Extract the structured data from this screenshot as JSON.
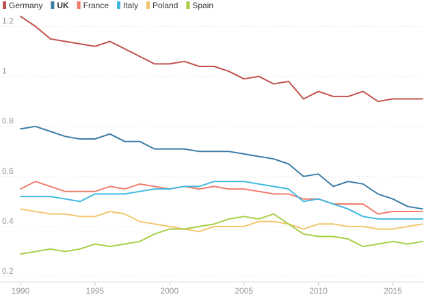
{
  "chart_data": {
    "type": "line",
    "title": "",
    "xlabel": "",
    "ylabel": "",
    "xlim": [
      1990,
      2017
    ],
    "ylim": [
      0.2,
      1.3
    ],
    "y_ticks": [
      0.2,
      0.4,
      0.6,
      0.8,
      1.0,
      1.2
    ],
    "y_tick_labels": [
      "0.2",
      "0.4",
      "0.6",
      "0.8",
      "1",
      "1.2"
    ],
    "x_ticks": [
      1990,
      1995,
      2000,
      2005,
      2010,
      2015
    ],
    "x_tick_labels": [
      "1990",
      "1995",
      "2000",
      "2005",
      "2010",
      "2015"
    ],
    "grid": true,
    "legend_position": "top-left",
    "x": [
      1990,
      1991,
      1992,
      1993,
      1994,
      1995,
      1996,
      1997,
      1998,
      1999,
      2000,
      2001,
      2002,
      2003,
      2004,
      2005,
      2006,
      2007,
      2008,
      2009,
      2010,
      2011,
      2012,
      2013,
      2014,
      2015,
      2016,
      2017
    ],
    "series": [
      {
        "name": "Germany",
        "color": "#c0504d",
        "bold": false,
        "values": [
          1.24,
          1.2,
          1.15,
          1.14,
          1.13,
          1.12,
          1.14,
          1.11,
          1.08,
          1.05,
          1.05,
          1.06,
          1.04,
          1.04,
          1.02,
          0.99,
          1.0,
          0.97,
          0.98,
          0.91,
          0.94,
          0.92,
          0.92,
          0.94,
          0.9,
          0.91,
          0.91,
          0.91
        ]
      },
      {
        "name": "UK",
        "color": "#3a7ca5",
        "bold": true,
        "values": [
          0.79,
          0.8,
          0.78,
          0.76,
          0.75,
          0.75,
          0.77,
          0.74,
          0.74,
          0.71,
          0.71,
          0.71,
          0.7,
          0.7,
          0.7,
          0.69,
          0.68,
          0.67,
          0.65,
          0.6,
          0.61,
          0.56,
          0.58,
          0.57,
          0.53,
          0.51,
          0.48,
          0.47
        ]
      },
      {
        "name": "France",
        "color": "#ef7c6b",
        "bold": false,
        "values": [
          0.55,
          0.58,
          0.56,
          0.54,
          0.54,
          0.54,
          0.56,
          0.55,
          0.57,
          0.56,
          0.55,
          0.56,
          0.55,
          0.56,
          0.55,
          0.55,
          0.54,
          0.53,
          0.53,
          0.51,
          0.51,
          0.49,
          0.49,
          0.49,
          0.45,
          0.46,
          0.46,
          0.46
        ]
      },
      {
        "name": "Italy",
        "color": "#3fb8e0",
        "bold": false,
        "values": [
          0.52,
          0.52,
          0.52,
          0.51,
          0.5,
          0.53,
          0.53,
          0.53,
          0.54,
          0.55,
          0.55,
          0.56,
          0.56,
          0.58,
          0.58,
          0.58,
          0.57,
          0.56,
          0.55,
          0.5,
          0.51,
          0.49,
          0.47,
          0.44,
          0.43,
          0.43,
          0.43,
          0.43
        ]
      },
      {
        "name": "Poland",
        "color": "#f2c56b",
        "bold": false,
        "values": [
          0.47,
          0.46,
          0.45,
          0.45,
          0.44,
          0.44,
          0.46,
          0.45,
          0.42,
          0.41,
          0.4,
          0.39,
          0.38,
          0.4,
          0.4,
          0.4,
          0.42,
          0.42,
          0.41,
          0.39,
          0.41,
          0.41,
          0.4,
          0.4,
          0.39,
          0.39,
          0.4,
          0.41
        ]
      },
      {
        "name": "Spain",
        "color": "#a8cf45",
        "bold": false,
        "values": [
          0.29,
          0.3,
          0.31,
          0.3,
          0.31,
          0.33,
          0.32,
          0.33,
          0.34,
          0.37,
          0.39,
          0.39,
          0.4,
          0.41,
          0.43,
          0.44,
          0.43,
          0.45,
          0.41,
          0.37,
          0.36,
          0.36,
          0.35,
          0.32,
          0.33,
          0.34,
          0.33,
          0.34
        ]
      }
    ]
  }
}
